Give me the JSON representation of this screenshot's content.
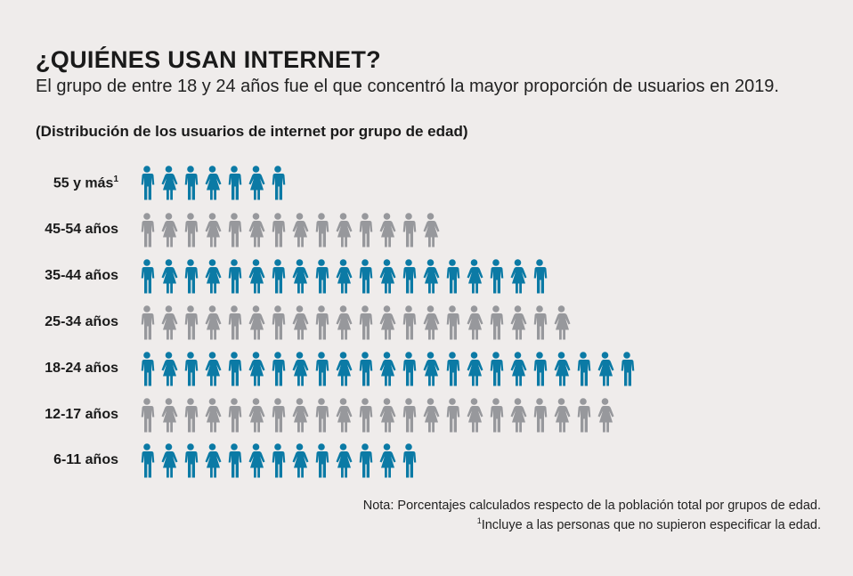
{
  "title": "¿QUIÉNES USAN INTERNET?",
  "subtitle": "El grupo de entre 18 y 24 años fue el que concentró la mayor proporción de usuarios en 2019.",
  "chart_data": {
    "type": "pictogram",
    "title": "(Distribución de los usuarios de internet por grupo de edad)",
    "categories": [
      "55 y  más",
      "45-54 años",
      "35-44 años",
      "25-34 años",
      "18-24 años",
      "12-17 años",
      "6-11 años"
    ],
    "category_footnote_marks": [
      "1",
      "",
      "",
      "",
      "",
      "",
      ""
    ],
    "values": [
      7,
      14,
      19,
      20,
      23,
      22,
      13
    ],
    "unit": "icons",
    "row_colors": [
      "#0b7aa5",
      "#97989c",
      "#0b7aa5",
      "#97989c",
      "#0b7aa5",
      "#97989c",
      "#0b7aa5"
    ]
  },
  "notes": {
    "line1": "Nota: Porcentajes calculados respecto de la población total por grupos de edad.",
    "line2_mark": "1",
    "line2": "Incluye a las personas que no supieron especificar la edad."
  }
}
